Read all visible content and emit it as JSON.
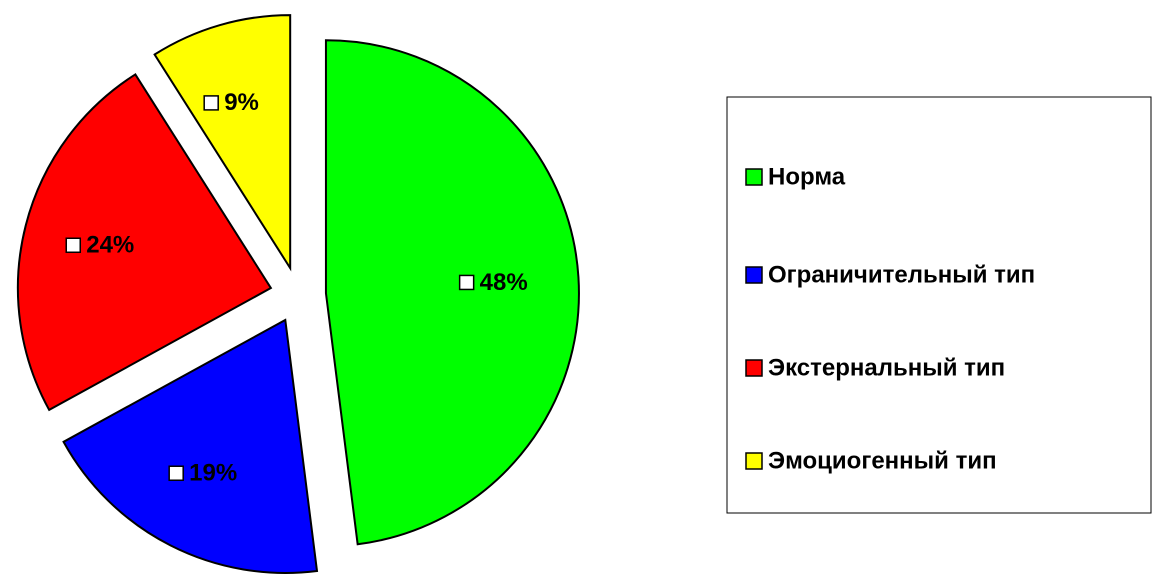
{
  "chart_data": {
    "type": "pie",
    "categories": [
      "Норма",
      "Ограничительный тип",
      "Экстернальный тип",
      "Эмоциогенный тип"
    ],
    "values": [
      48,
      19,
      24,
      9
    ],
    "value_labels": [
      "48%",
      "19%",
      "24%",
      "9%"
    ],
    "colors": [
      "#00ff00",
      "#0000ff",
      "#ff0000",
      "#ffff00"
    ],
    "legend": "right"
  }
}
